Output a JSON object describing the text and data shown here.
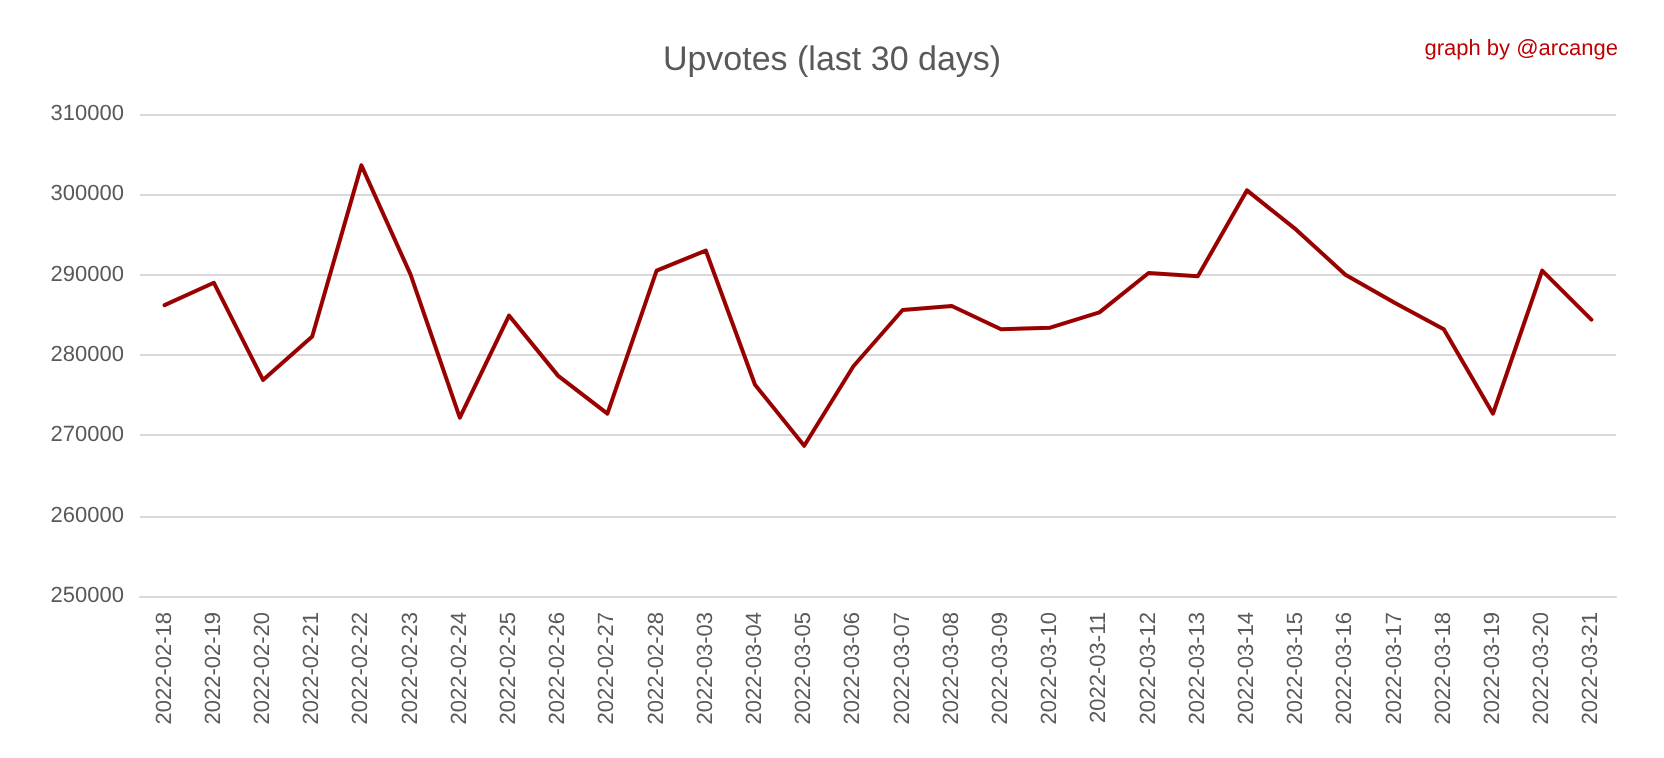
{
  "chart_data": {
    "type": "line",
    "title": "Upvotes (last 30 days)",
    "annotations": [
      "graph by @arcange"
    ],
    "categories": [
      "2022-02-18",
      "2022-02-19",
      "2022-02-20",
      "2022-02-21",
      "2022-02-22",
      "2022-02-23",
      "2022-02-24",
      "2022-02-25",
      "2022-02-26",
      "2022-02-27",
      "2022-02-28",
      "2022-03-03",
      "2022-03-04",
      "2022-03-05",
      "2022-03-06",
      "2022-03-07",
      "2022-03-08",
      "2022-03-09",
      "2022-03-10",
      "2022-03-11",
      "2022-03-12",
      "2022-03-13",
      "2022-03-14",
      "2022-03-15",
      "2022-03-16",
      "2022-03-17",
      "2022-03-18",
      "2022-03-19",
      "2022-03-20",
      "2022-03-21"
    ],
    "series": [
      {
        "color": "#990000",
        "values": [
          286200,
          289000,
          276900,
          282300,
          303600,
          290000,
          272200,
          284900,
          277400,
          272700,
          290500,
          293000,
          276300,
          268700,
          278600,
          285600,
          286100,
          283200,
          283400,
          285300,
          290200,
          289800,
          300500,
          295600,
          290000,
          286500,
          283200,
          272700,
          290500,
          284400
        ]
      }
    ],
    "ylim": [
      250000,
      310000
    ],
    "yticks": [
      250000,
      260000,
      270000,
      280000,
      290000,
      300000,
      310000
    ],
    "grid": "y",
    "marker": "none",
    "line_style": "solid"
  }
}
